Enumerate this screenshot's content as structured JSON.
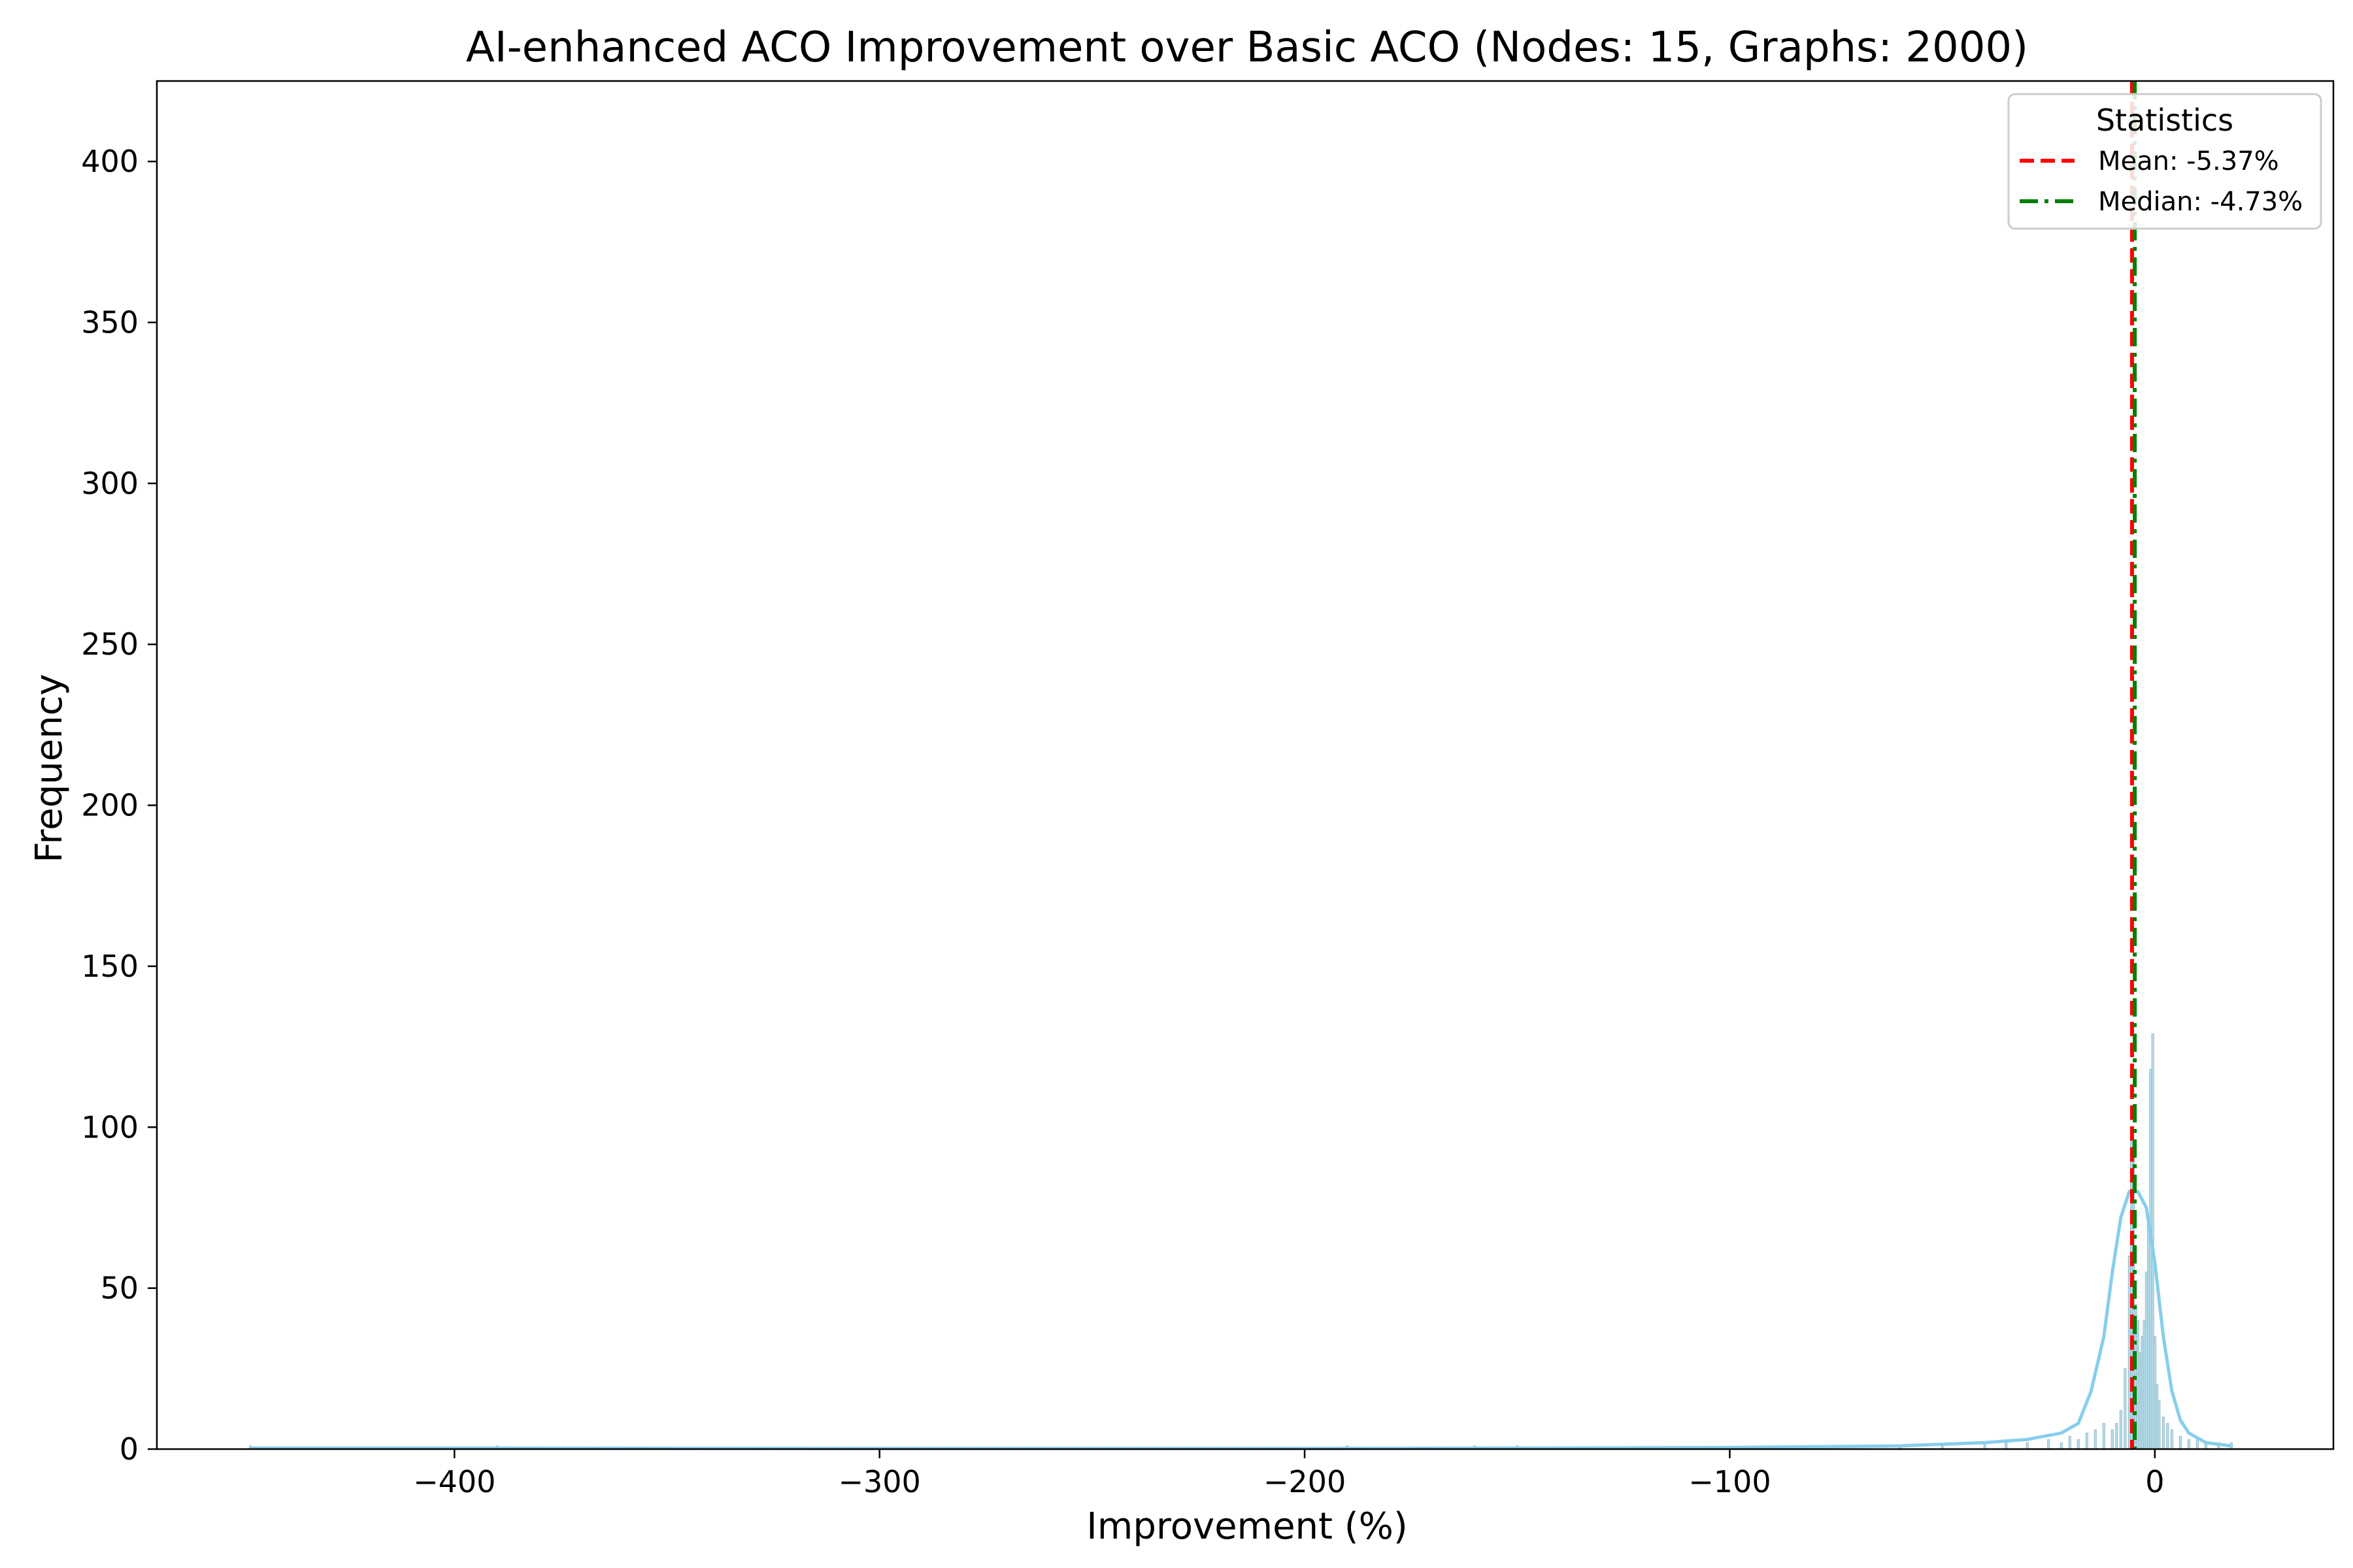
{
  "chart_data": {
    "type": "histogram",
    "title": "AI-enhanced ACO Improvement over Basic ACO (Nodes: 15, Graphs: 2000)",
    "xlabel": "Improvement (%)",
    "ylabel": "Frequency",
    "xlim": [
      -470,
      42
    ],
    "ylim": [
      0,
      425
    ],
    "xticks": [
      -400,
      -300,
      -200,
      -100,
      0
    ],
    "xtick_labels": [
      "−400",
      "−300",
      "−200",
      "−100",
      "0"
    ],
    "yticks": [
      0,
      50,
      100,
      150,
      200,
      250,
      300,
      350,
      400
    ],
    "ytick_labels": [
      "0",
      "50",
      "100",
      "150",
      "200",
      "250",
      "300",
      "350",
      "400"
    ],
    "grid": false,
    "bar_color": "#add8e6",
    "kde_color": "#87ceeb",
    "bins": [
      {
        "x": -448,
        "count": 1
      },
      {
        "x": -390,
        "count": 1
      },
      {
        "x": -190,
        "count": 1
      },
      {
        "x": -160,
        "count": 1
      },
      {
        "x": -150,
        "count": 1
      },
      {
        "x": -88,
        "count": 1
      },
      {
        "x": -75,
        "count": 1
      },
      {
        "x": -60,
        "count": 1
      },
      {
        "x": -50,
        "count": 1
      },
      {
        "x": -40,
        "count": 2
      },
      {
        "x": -35,
        "count": 2
      },
      {
        "x": -30,
        "count": 2
      },
      {
        "x": -25,
        "count": 3
      },
      {
        "x": -22,
        "count": 2
      },
      {
        "x": -20,
        "count": 4
      },
      {
        "x": -18,
        "count": 3
      },
      {
        "x": -16,
        "count": 5
      },
      {
        "x": -14,
        "count": 6
      },
      {
        "x": -12,
        "count": 8
      },
      {
        "x": -10,
        "count": 6
      },
      {
        "x": -9,
        "count": 8
      },
      {
        "x": -8,
        "count": 12
      },
      {
        "x": -7,
        "count": 25
      },
      {
        "x": -6,
        "count": 60
      },
      {
        "x": -5.5,
        "count": 100
      },
      {
        "x": -5,
        "count": 93
      },
      {
        "x": -4.5,
        "count": 45
      },
      {
        "x": -4,
        "count": 40
      },
      {
        "x": -3.5,
        "count": 30
      },
      {
        "x": -3,
        "count": 35
      },
      {
        "x": -2.5,
        "count": 40
      },
      {
        "x": -2,
        "count": 55
      },
      {
        "x": -1.5,
        "count": 70
      },
      {
        "x": -1,
        "count": 118
      },
      {
        "x": -0.5,
        "count": 129
      },
      {
        "x": 0,
        "count": 35
      },
      {
        "x": 0.5,
        "count": 20
      },
      {
        "x": 1,
        "count": 15
      },
      {
        "x": 2,
        "count": 10
      },
      {
        "x": 3,
        "count": 8
      },
      {
        "x": 4,
        "count": 6
      },
      {
        "x": 6,
        "count": 4
      },
      {
        "x": 8,
        "count": 3
      },
      {
        "x": 10,
        "count": 3
      },
      {
        "x": 12,
        "count": 2
      },
      {
        "x": 15,
        "count": 2
      },
      {
        "x": 18,
        "count": 2
      }
    ],
    "kde": [
      [
        -448,
        0.3
      ],
      [
        -400,
        0.3
      ],
      [
        -300,
        0.2
      ],
      [
        -200,
        0.2
      ],
      [
        -150,
        0.3
      ],
      [
        -100,
        0.5
      ],
      [
        -60,
        1
      ],
      [
        -40,
        2
      ],
      [
        -30,
        3
      ],
      [
        -22,
        5
      ],
      [
        -18,
        8
      ],
      [
        -15,
        18
      ],
      [
        -12,
        35
      ],
      [
        -10,
        55
      ],
      [
        -8,
        72
      ],
      [
        -6,
        80
      ],
      [
        -4,
        80
      ],
      [
        -2,
        75
      ],
      [
        0,
        58
      ],
      [
        2,
        35
      ],
      [
        4,
        18
      ],
      [
        6,
        9
      ],
      [
        8,
        5
      ],
      [
        12,
        2
      ],
      [
        18,
        1
      ]
    ],
    "reference_lines": [
      {
        "name": "Mean: -5.37%",
        "x": -5.37,
        "color": "#ff0000",
        "style": "dashed"
      },
      {
        "name": "Median: -4.73%",
        "x": -4.73,
        "color": "#008000",
        "style": "dashdot"
      }
    ],
    "legend": {
      "title": "Statistics",
      "placement": "top-right",
      "entries": [
        "Mean: -5.37%",
        "Median: -4.73%"
      ]
    }
  }
}
